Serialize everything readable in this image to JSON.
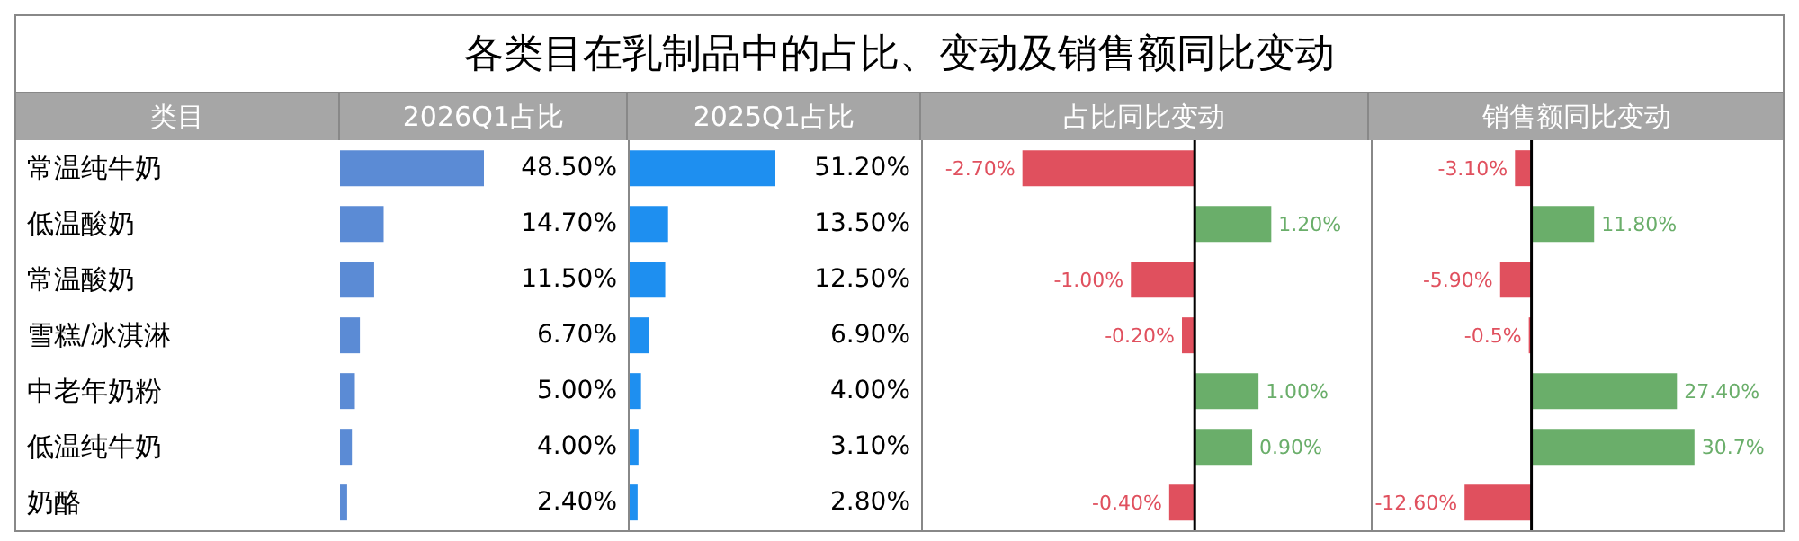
{
  "chart_data": [
    {
      "type": "bar",
      "orientation": "horizontal",
      "title": "各类目在乳制品中的占比、变动及销售额同比变动",
      "ylabel": "类目",
      "subtitle": "2026Q1占比",
      "tick_labels": "y",
      "categories": [
        "常温纯牛奶",
        "低温酸奶",
        "常温酸奶",
        "雪糕/冰淇淋",
        "中老年奶粉",
        "低温纯牛奶",
        "奶酪"
      ],
      "values": [
        48.5,
        14.7,
        11.5,
        6.7,
        5.0,
        4.0,
        2.4
      ],
      "color": "#5b8bd5",
      "value_labels": [
        "48.50%",
        "14.70%",
        "11.50%",
        "6.70%",
        "5.00%",
        "4.00%",
        "2.40%"
      ]
    },
    {
      "type": "bar",
      "orientation": "horizontal",
      "subtitle": "2025Q1占比",
      "tick_labels": false,
      "values": [
        51.2,
        13.5,
        12.5,
        6.9,
        4.0,
        3.1,
        2.8
      ],
      "color": "#1e8ff0",
      "value_labels": [
        "51.20%",
        "13.50%",
        "12.50%",
        "6.90%",
        "4.00%",
        "3.10%",
        "2.80%"
      ]
    },
    {
      "type": "bar",
      "orientation": "horizontal",
      "subtitle": "占比同比变动",
      "tick_labels": false,
      "values": [
        -2.7,
        1.2,
        -1.0,
        -0.2,
        1.0,
        0.9,
        -0.4
      ],
      "colors": [
        "#e0505e",
        "#6aae6a",
        "#e0505e",
        "#e0505e",
        "#6aae6a",
        "#6aae6a",
        "#e0505e"
      ],
      "value_labels": [
        "-2.70%",
        "1.20%",
        "-1.00%",
        "-0.20%",
        "1.00%",
        "0.90%",
        "-0.40%"
      ],
      "ref_lines": [
        {
          "axis": "x",
          "value": 0,
          "color": "#000000"
        }
      ]
    },
    {
      "type": "bar",
      "orientation": "horizontal",
      "subtitle": "销售额同比变动",
      "tick_labels": false,
      "values": [
        -3.1,
        11.8,
        -5.9,
        -0.5,
        27.4,
        30.7,
        -12.6
      ],
      "colors": [
        "#e0505e",
        "#6aae6a",
        "#e0505e",
        "#e0505e",
        "#6aae6a",
        "#6aae6a",
        "#e0505e"
      ],
      "value_labels": [
        "-3.10%",
        "11.80%",
        "-5.90%",
        "-0.5%",
        "27.40%",
        "30.7%",
        "-12.60%"
      ],
      "ref_lines": [
        {
          "axis": "x",
          "value": 0,
          "color": "#000000"
        }
      ]
    }
  ]
}
